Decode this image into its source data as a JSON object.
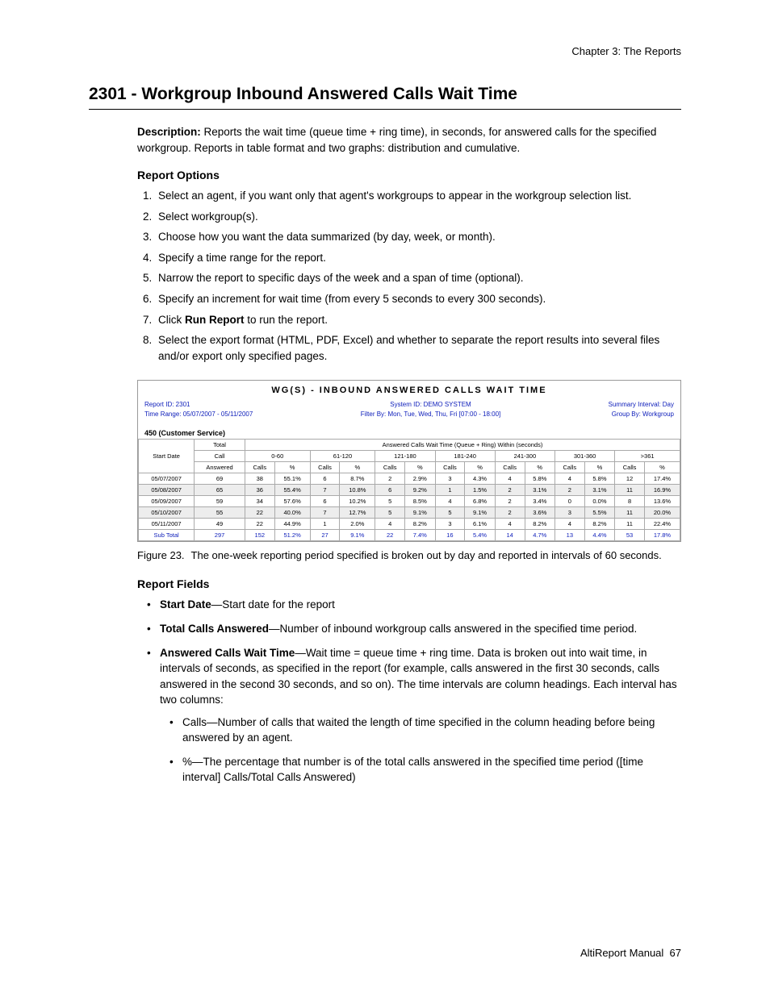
{
  "chapter_header": "Chapter 3:  The Reports",
  "title": "2301 - Workgroup Inbound Answered Calls Wait Time",
  "description_label": "Description:",
  "description_text": " Reports the wait time (queue time + ring time), in seconds, for answered calls for the specified workgroup. Reports in table format and two graphs: distribution and cumulative.",
  "report_options_head": "Report Options",
  "options": [
    "Select an agent, if you want only that agent's workgroups to appear in the workgroup selection list.",
    "Select workgroup(s).",
    "Choose how you want the data summarized (by day, week, or month).",
    "Specify a time range for the report.",
    "Narrow the report to specific days of the week and a span of time (optional).",
    "Specify an increment for wait time (from every 5 seconds to every 300 seconds).",
    "",
    "Select the export format (HTML, PDF, Excel) and whether to separate the report results into several files and/or export only specified pages."
  ],
  "option7_pre": "Click ",
  "option7_bold": "Run Report",
  "option7_post": " to run the report.",
  "report": {
    "title": "WG(S) - INBOUND ANSWERED CALLS WAIT TIME",
    "meta_left_1": "Report ID: 2301",
    "meta_left_2": "Time Range: 05/07/2007 - 05/11/2007",
    "meta_center_1": "System ID: DEMO SYSTEM",
    "meta_center_2": "Filter By: Mon, Tue, Wed, Thu, Fri [07:00 - 18:00]",
    "meta_right_1": "Summary Interval: Day",
    "meta_right_2": "Group By: Workgroup",
    "workgroup_label": "450 (Customer Service)",
    "span_header": "Answered Calls Wait Time (Queue + Ring) Within (seconds)",
    "col_start": "Start Date",
    "col_total_1": "Total",
    "col_total_2": "Call",
    "col_total_3": "Answered",
    "ranges": [
      "0-60",
      "61-120",
      "121-180",
      "181-240",
      "241-300",
      "301-360",
      ">361"
    ],
    "subcols": [
      "Calls",
      "%"
    ],
    "rows": [
      {
        "date": "05/07/2007",
        "total": "69",
        "cells": [
          "38",
          "55.1%",
          "6",
          "8.7%",
          "2",
          "2.9%",
          "3",
          "4.3%",
          "4",
          "5.8%",
          "4",
          "5.8%",
          "12",
          "17.4%"
        ]
      },
      {
        "date": "05/08/2007",
        "total": "65",
        "cells": [
          "36",
          "55.4%",
          "7",
          "10.8%",
          "6",
          "9.2%",
          "1",
          "1.5%",
          "2",
          "3.1%",
          "2",
          "3.1%",
          "11",
          "16.9%"
        ]
      },
      {
        "date": "05/09/2007",
        "total": "59",
        "cells": [
          "34",
          "57.6%",
          "6",
          "10.2%",
          "5",
          "8.5%",
          "4",
          "6.8%",
          "2",
          "3.4%",
          "0",
          "0.0%",
          "8",
          "13.6%"
        ]
      },
      {
        "date": "05/10/2007",
        "total": "55",
        "cells": [
          "22",
          "40.0%",
          "7",
          "12.7%",
          "5",
          "9.1%",
          "5",
          "9.1%",
          "2",
          "3.6%",
          "3",
          "5.5%",
          "11",
          "20.0%"
        ]
      },
      {
        "date": "05/11/2007",
        "total": "49",
        "cells": [
          "22",
          "44.9%",
          "1",
          "2.0%",
          "4",
          "8.2%",
          "3",
          "6.1%",
          "4",
          "8.2%",
          "4",
          "8.2%",
          "11",
          "22.4%"
        ]
      }
    ],
    "subtotal_label": "Sub Total",
    "subtotal_total": "297",
    "subtotal_cells": [
      "152",
      "51.2%",
      "27",
      "9.1%",
      "22",
      "7.4%",
      "16",
      "5.4%",
      "14",
      "4.7%",
      "13",
      "4.4%",
      "53",
      "17.8%"
    ]
  },
  "fig_label": "Figure 23.",
  "fig_text": "The one-week reporting period specified is broken out by day and reported in intervals of 60 seconds.",
  "report_fields_head": "Report Fields",
  "fields": {
    "f1_bold": "Start Date",
    "f1_text": "—Start date for the report",
    "f2_bold": "Total Calls Answered",
    "f2_text": "—Number of inbound workgroup calls answered in the specified time period.",
    "f3_bold": "Answered Calls Wait Time",
    "f3_text": "—Wait time = queue time + ring time. Data is broken out into wait time, in intervals of seconds, as specified in the report (for example, calls answered in the first 30 seconds, calls answered in the second 30 seconds, and so on). The time intervals are column headings. Each interval has two columns:",
    "sub1": "Calls—Number of calls that waited the length of time specified in the column heading before being answered by an agent.",
    "sub2": "%—The percentage that number is of the total calls answered in the specified time period ([time interval] Calls/Total Calls Answered)"
  },
  "footer_text": "AltiReport Manual",
  "footer_page": "67"
}
